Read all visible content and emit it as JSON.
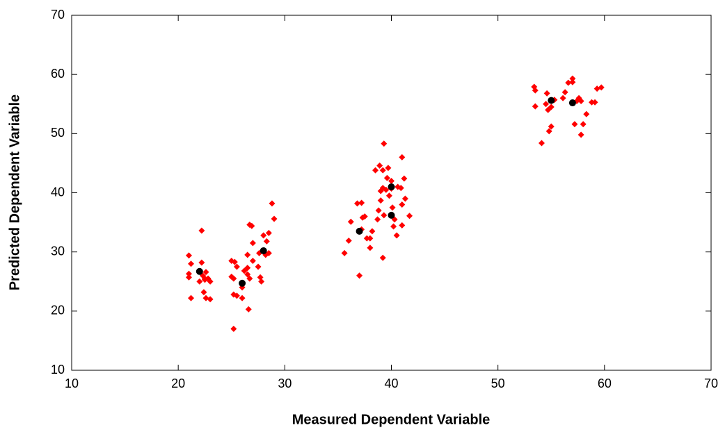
{
  "chart_data": {
    "type": "scatter",
    "xlabel": "Measured Dependent Variable",
    "ylabel": "Predicted Dependent Variable",
    "xlim": [
      10,
      70
    ],
    "xticks": [
      10,
      20,
      30,
      40,
      50,
      60,
      70
    ],
    "ylim": [
      10,
      70
    ],
    "yticks": [
      10,
      20,
      30,
      40,
      50,
      60,
      70
    ],
    "series": [
      {
        "color": "#ff0000",
        "marker": "diamond",
        "x": [
          21,
          21.2,
          21,
          21,
          21.2,
          22.2,
          22.2,
          22.3,
          22.5,
          22.5,
          22,
          22.4,
          22.6,
          22.8,
          23,
          23,
          22.6,
          25,
          25.3,
          25.5,
          25,
          25.2,
          25.2,
          25.5,
          25.2,
          26,
          26,
          26.2,
          26.5,
          26.5,
          26.5,
          26.7,
          26.9,
          27,
          26.7,
          27,
          26.6,
          27.5,
          27.7,
          27.8,
          27.6,
          28,
          28.3,
          28.5,
          28.2,
          28.5,
          28.8,
          29,
          35.6,
          36,
          36.2,
          36.8,
          37.2,
          37,
          37.2,
          37.3,
          37.5,
          37.7,
          38,
          38,
          38.2,
          38.5,
          38.7,
          38.8,
          38.9,
          39,
          39,
          39.2,
          39.2,
          39.3,
          39.2,
          39.3,
          39.5,
          39.6,
          39.7,
          39.8,
          40,
          40,
          40.1,
          40.3,
          40.5,
          40.6,
          40.9,
          41,
          41,
          41.2,
          41.3,
          41,
          41.7,
          40.2,
          53.4,
          53.5,
          53.5,
          54.1,
          54.5,
          54.6,
          54.7,
          54.8,
          55,
          55,
          55.3,
          56.1,
          56.3,
          56.6,
          57,
          57,
          57.2,
          57.4,
          57.6,
          57.8,
          57.8,
          58,
          58.3,
          58.8,
          59.1,
          59.3,
          59.7
        ],
        "values": [
          29.4,
          28,
          26.3,
          25.7,
          22.2,
          33.6,
          28.2,
          26,
          25.5,
          25.3,
          25,
          23.2,
          22.2,
          25.5,
          25,
          22,
          26.6,
          28.5,
          28.3,
          27.5,
          25.8,
          25.5,
          22.8,
          22.6,
          17,
          22.2,
          24,
          26.8,
          27.3,
          26.2,
          29.5,
          34.6,
          34.4,
          31.5,
          25.5,
          28.5,
          20.3,
          27.5,
          25.7,
          25,
          29.8,
          32.8,
          31.8,
          33.2,
          29.5,
          29.8,
          38.2,
          35.6,
          29.8,
          31.9,
          35.1,
          38.2,
          38.3,
          26,
          33.8,
          35.8,
          36,
          32.3,
          32.3,
          30.7,
          33.5,
          43.8,
          35.5,
          37,
          44.6,
          38.7,
          40.3,
          40.8,
          43.8,
          48.3,
          29,
          36.2,
          40.5,
          42.5,
          44.2,
          39.5,
          42,
          40.7,
          37.5,
          35.5,
          32.8,
          41,
          40.8,
          46,
          38,
          42.4,
          39,
          34.5,
          36.1,
          34.3,
          57.9,
          57.3,
          54.6,
          48.4,
          55,
          56.8,
          54,
          50.4,
          51.2,
          54.5,
          55.7,
          56,
          57,
          58.6,
          59.3,
          58.7,
          51.6,
          55.5,
          56,
          55.5,
          49.8,
          51.6,
          53.3,
          55.3,
          55.3,
          57.6,
          57.8
        ]
      },
      {
        "color": "#000000",
        "marker": "circle",
        "x": [
          22,
          26,
          28,
          37,
          40,
          40,
          55,
          57
        ],
        "values": [
          26.7,
          24.7,
          30.2,
          33.5,
          41,
          36.2,
          55.6,
          55.2
        ]
      }
    ]
  }
}
